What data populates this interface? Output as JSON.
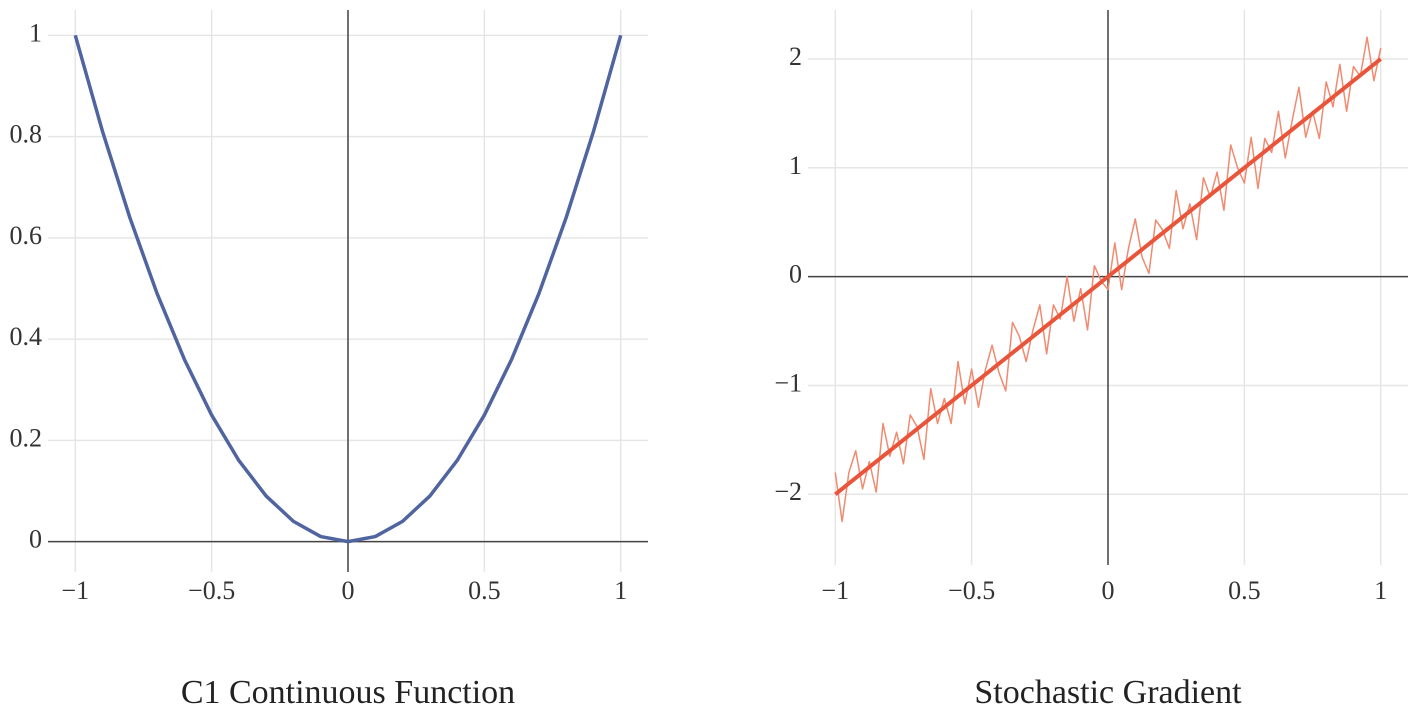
{
  "chart_data": [
    {
      "type": "line",
      "title": "C1 Continuous Function",
      "xlim": [
        -1.1,
        1.1
      ],
      "ylim": [
        -0.06,
        1.05
      ],
      "xticks": [
        {
          "value": -1,
          "label": "−1"
        },
        {
          "value": -0.5,
          "label": "−0.5"
        },
        0,
        0.5,
        1
      ],
      "yticks": [
        0,
        0.2,
        0.4,
        0.6,
        0.8,
        1
      ],
      "grid": true,
      "zeroline": true,
      "series": [
        {
          "color": "#5064a0",
          "width": 3.5,
          "x": [
            -1,
            -0.9,
            -0.8,
            -0.7,
            -0.6,
            -0.5,
            -0.4,
            -0.3,
            -0.2,
            -0.1,
            0,
            0.1,
            0.2,
            0.3,
            0.4,
            0.5,
            0.6,
            0.7,
            0.8,
            0.9,
            1
          ],
          "values": [
            1,
            0.81,
            0.64,
            0.49,
            0.36,
            0.25,
            0.16,
            0.09,
            0.04,
            0.01,
            0,
            0.01,
            0.04,
            0.09,
            0.16,
            0.25,
            0.36,
            0.49,
            0.64,
            0.81,
            1
          ]
        }
      ]
    },
    {
      "type": "line",
      "title": "Stochastic Gradient",
      "xlim": [
        -1.1,
        1.1
      ],
      "ylim": [
        -2.65,
        2.45
      ],
      "xticks": [
        {
          "value": -1,
          "label": "−1"
        },
        {
          "value": -0.5,
          "label": "−0.5"
        },
        0,
        0.5,
        1
      ],
      "yticks": [
        {
          "value": -2,
          "label": "−2"
        },
        {
          "value": -1,
          "label": "−1"
        },
        0,
        1,
        2
      ],
      "grid": true,
      "zeroline": true,
      "series": [
        {
          "color": "#f08a70",
          "width": 1.5,
          "x": [
            -1,
            -0.975,
            -0.95,
            -0.925,
            -0.9,
            -0.875,
            -0.85,
            -0.825,
            -0.8,
            -0.775,
            -0.75,
            -0.725,
            -0.7,
            -0.675,
            -0.65,
            -0.625,
            -0.6,
            -0.575,
            -0.55,
            -0.525,
            -0.5,
            -0.475,
            -0.45,
            -0.425,
            -0.4,
            -0.375,
            -0.35,
            -0.325,
            -0.3,
            -0.275,
            -0.25,
            -0.225,
            -0.2,
            -0.175,
            -0.15,
            -0.125,
            -0.1,
            -0.075,
            -0.05,
            -0.025,
            0,
            0.025,
            0.05,
            0.075,
            0.1,
            0.125,
            0.15,
            0.175,
            0.2,
            0.225,
            0.25,
            0.275,
            0.3,
            0.325,
            0.35,
            0.375,
            0.4,
            0.425,
            0.45,
            0.475,
            0.5,
            0.525,
            0.55,
            0.575,
            0.6,
            0.625,
            0.65,
            0.675,
            0.7,
            0.725,
            0.75,
            0.775,
            0.8,
            0.825,
            0.85,
            0.875,
            0.9,
            0.925,
            0.95,
            0.975,
            1
          ],
          "values": [
            -1.8,
            -2.25,
            -1.8,
            -1.6,
            -1.95,
            -1.7,
            -1.98,
            -1.35,
            -1.65,
            -1.43,
            -1.72,
            -1.27,
            -1.38,
            -1.68,
            -1.03,
            -1.35,
            -1.12,
            -1.35,
            -0.78,
            -1.17,
            -0.85,
            -1.2,
            -0.86,
            -0.63,
            -0.88,
            -1.05,
            -0.42,
            -0.55,
            -0.78,
            -0.49,
            -0.26,
            -0.71,
            -0.26,
            -0.39,
            0,
            -0.41,
            -0.11,
            -0.49,
            0.1,
            -0.04,
            -0.12,
            0.31,
            -0.12,
            0.26,
            0.53,
            0.18,
            0.03,
            0.52,
            0.43,
            0.26,
            0.79,
            0.44,
            0.67,
            0.34,
            0.91,
            0.73,
            0.96,
            0.61,
            1.21,
            1,
            0.86,
            1.28,
            0.81,
            1.27,
            1.14,
            1.52,
            1.09,
            1.43,
            1.74,
            1.28,
            1.52,
            1.27,
            1.79,
            1.56,
            1.95,
            1.52,
            1.93,
            1.84,
            2.2,
            1.8,
            2.1
          ]
        },
        {
          "color": "#e8553a",
          "width": 4,
          "x": [
            -1,
            1
          ],
          "values": [
            -2,
            2
          ]
        }
      ]
    }
  ]
}
